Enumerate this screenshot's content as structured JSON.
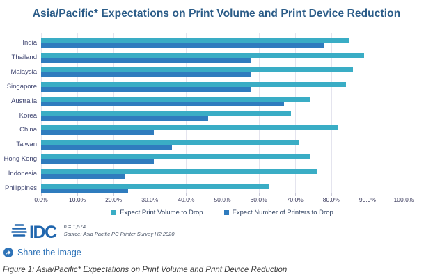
{
  "title": "Asia/Pacific* Expectations on Print Volume and Print Device Reduction",
  "chart_data": {
    "type": "bar",
    "orientation": "horizontal",
    "title": "Asia/Pacific* Expectations on Print Volume and Print Device Reduction",
    "categories": [
      "India",
      "Thailand",
      "Malaysia",
      "Singapore",
      "Australia",
      "Korea",
      "China",
      "Taiwan",
      "Hong Kong",
      "Indonesia",
      "Philippines"
    ],
    "series": [
      {
        "name": "Expect Print Volume to Drop",
        "color": "#3AADC5",
        "values": [
          85,
          89,
          86,
          84,
          74,
          69,
          82,
          71,
          74,
          76,
          63
        ]
      },
      {
        "name": "Expect Number of Printers to Drop",
        "color": "#2F7CBE",
        "values": [
          78,
          58,
          58,
          58,
          67,
          46,
          31,
          36,
          31,
          23,
          24
        ]
      }
    ],
    "xlim": [
      0,
      100
    ],
    "x_ticks": [
      "0.0%",
      "10.0%",
      "20.0%",
      "30.0%",
      "40.0%",
      "50.0%",
      "60.0%",
      "70.0%",
      "80.0%",
      "90.0%",
      "100.0%"
    ],
    "grid": "vertical",
    "legend_position": "bottom"
  },
  "footer": {
    "logo_text": "IDC",
    "sample_note": "n = 1,574",
    "source_note": "Source: Asia Pacific PC Printer Survey H2 2020"
  },
  "share": {
    "label": "Share the image"
  },
  "caption": "Figure 1: Asia/Pacific* Expectations on Print Volume and Print Device Reduction",
  "colors": {
    "title": "#2B5C88",
    "gridline": "#E4E4EE",
    "idc_blue": "#2066AE",
    "share_blue": "#2E73B8"
  }
}
